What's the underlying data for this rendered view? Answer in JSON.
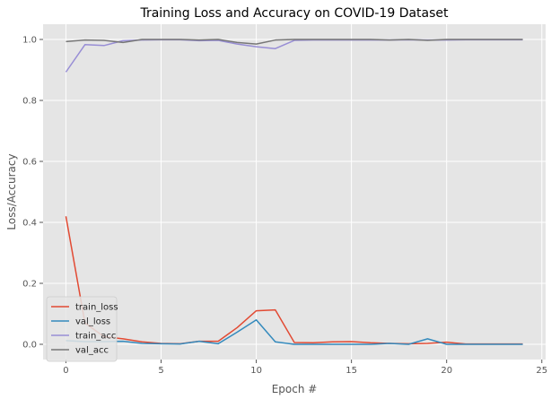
{
  "chart_data": {
    "type": "line",
    "title": "Training Loss and Accuracy on COVID-19 Dataset",
    "xlabel": "Epoch #",
    "ylabel": "Loss/Accuracy",
    "xlim": [
      -1.2,
      25.2
    ],
    "ylim": [
      -0.05,
      1.05
    ],
    "xticks": [
      0,
      5,
      10,
      15,
      20,
      25
    ],
    "yticks": [
      0.0,
      0.2,
      0.4,
      0.6,
      0.8,
      1.0
    ],
    "xtick_labels": [
      "0",
      "5",
      "10",
      "15",
      "20",
      "25"
    ],
    "ytick_labels": [
      "0.0",
      "0.2",
      "0.4",
      "0.6",
      "0.8",
      "1.0"
    ],
    "grid": true,
    "legend_position": "lower-left",
    "x": [
      0,
      1,
      2,
      3,
      4,
      5,
      6,
      7,
      8,
      9,
      10,
      11,
      12,
      13,
      14,
      15,
      16,
      17,
      18,
      19,
      20,
      21,
      22,
      23,
      24
    ],
    "series": [
      {
        "name": "train_loss",
        "color": "#e24a33",
        "values": [
          0.42,
          0.07,
          0.025,
          0.018,
          0.008,
          0.003,
          0.002,
          0.01,
          0.01,
          0.055,
          0.11,
          0.113,
          0.006,
          0.005,
          0.008,
          0.009,
          0.005,
          0.003,
          0.002,
          0.003,
          0.007,
          0.001,
          0.001,
          0.001,
          0.001
        ]
      },
      {
        "name": "val_loss",
        "color": "#348abd",
        "values": [
          0.012,
          0.009,
          0.009,
          0.01,
          0.003,
          0.002,
          0.001,
          0.01,
          0.002,
          0.04,
          0.08,
          0.008,
          0.0,
          0.0,
          0.0,
          0.0,
          0.0,
          0.003,
          0.0,
          0.018,
          0.0,
          0.0,
          0.0,
          0.0,
          0.0
        ]
      },
      {
        "name": "train_acc",
        "color": "#988ed5",
        "values": [
          0.893,
          0.983,
          0.98,
          0.996,
          0.998,
          0.999,
          0.999,
          0.996,
          0.997,
          0.985,
          0.976,
          0.97,
          0.997,
          0.998,
          0.998,
          0.998,
          0.998,
          0.998,
          0.999,
          0.998,
          0.998,
          0.999,
          0.999,
          0.999,
          0.999
        ]
      },
      {
        "name": "val_acc",
        "color": "#777777",
        "values": [
          0.993,
          0.998,
          0.997,
          0.99,
          1.0,
          1.0,
          1.0,
          0.998,
          1.0,
          0.99,
          0.985,
          0.998,
          1.0,
          1.0,
          1.0,
          1.0,
          1.0,
          0.998,
          1.0,
          0.997,
          1.0,
          1.0,
          1.0,
          1.0,
          1.0
        ]
      }
    ]
  },
  "colors": {
    "plot_background": "#e5e5e5",
    "grid": "#ffffff"
  }
}
